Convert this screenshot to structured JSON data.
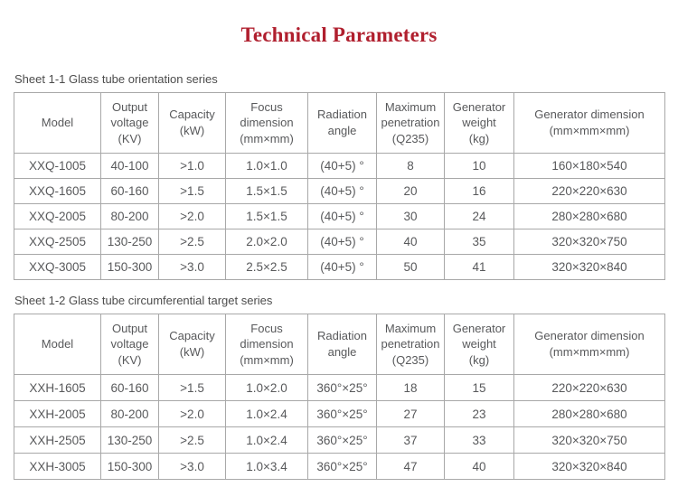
{
  "page": {
    "title": "Technical Parameters"
  },
  "colors": {
    "title_red": "#b01f2e",
    "table_text_gray": "#58595b",
    "border_gray": "#a8a8a8"
  },
  "tables": [
    {
      "caption": "Sheet 1-1 Glass tube orientation series",
      "headers": [
        "Model",
        "Output\nvoltage\n(KV)",
        "Capacity\n(kW)",
        "Focus\ndimension\n(mm×mm)",
        "Radiation\nangle",
        "Maximum\npenetration\n(Q235)",
        "Generator\nweight\n(kg)",
        "Generator dimension\n(mm×mm×mm)"
      ],
      "rows": [
        [
          "XXQ-1005",
          "40-100",
          ">1.0",
          "1.0×1.0",
          "(40+5) °",
          "8",
          "10",
          "160×180×540"
        ],
        [
          "XXQ-1605",
          "60-160",
          ">1.5",
          "1.5×1.5",
          "(40+5) °",
          "20",
          "16",
          "220×220×630"
        ],
        [
          "XXQ-2005",
          "80-200",
          ">2.0",
          "1.5×1.5",
          "(40+5) °",
          "30",
          "24",
          "280×280×680"
        ],
        [
          "XXQ-2505",
          "130-250",
          ">2.5",
          "2.0×2.0",
          "(40+5) °",
          "40",
          "35",
          "320×320×750"
        ],
        [
          "XXQ-3005",
          "150-300",
          ">3.0",
          "2.5×2.5",
          "(40+5) °",
          "50",
          "41",
          "320×320×840"
        ]
      ]
    },
    {
      "caption": "Sheet 1-2 Glass tube circumferential target series",
      "headers": [
        "Model",
        "Output\nvoltage\n(KV)",
        "Capacity\n(kW)",
        "Focus\ndimension\n(mm×mm)",
        "Radiation\nangle",
        "Maximum\npenetration\n(Q235)",
        "Generator\nweight\n(kg)",
        "Generator dimension\n(mm×mm×mm)"
      ],
      "rows": [
        [
          "XXH-1605",
          "60-160",
          ">1.5",
          "1.0×2.0",
          "360°×25°",
          "18",
          "15",
          "220×220×630"
        ],
        [
          "XXH-2005",
          "80-200",
          ">2.0",
          "1.0×2.4",
          "360°×25°",
          "27",
          "23",
          "280×280×680"
        ],
        [
          "XXH-2505",
          "130-250",
          ">2.5",
          "1.0×2.4",
          "360°×25°",
          "37",
          "33",
          "320×320×750"
        ],
        [
          "XXH-3005",
          "150-300",
          ">3.0",
          "1.0×3.4",
          "360°×25°",
          "47",
          "40",
          "320×320×840"
        ]
      ]
    }
  ]
}
